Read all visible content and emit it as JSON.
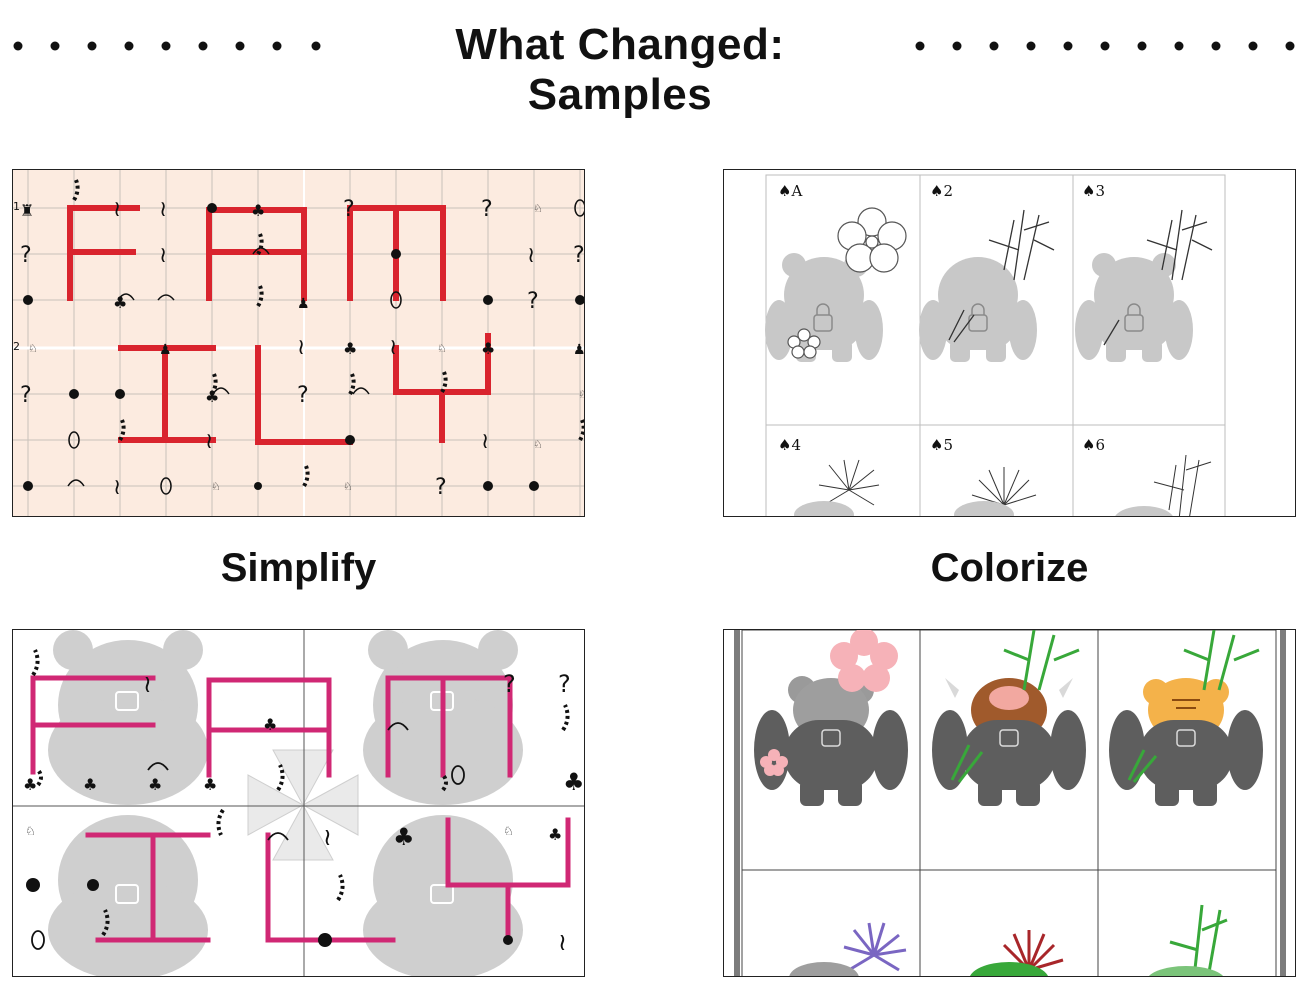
{
  "header": {
    "title": "What Changed: Samples"
  },
  "captions": {
    "left": "Simplify",
    "right": "Colorize"
  },
  "cards": {
    "top_row": [
      "♠A",
      "♠2",
      "♠3"
    ],
    "bottom_row": [
      "♠4",
      "♠5",
      "♠6"
    ]
  },
  "colors": {
    "path_red": "#d9242e",
    "path_magenta": "#d02874",
    "peach_bg": "#fcebe0",
    "mascot_gray": "#c8c8c8",
    "mascot_dark": "#5e5e5e",
    "ox_brown": "#a05a2c",
    "tiger_orange": "#f4b24a",
    "bamboo_green": "#38a83a",
    "blossom_pink": "#f6b2b8",
    "chrysanthemum_purple": "#7a66c2",
    "fan_red": "#a8262a"
  }
}
